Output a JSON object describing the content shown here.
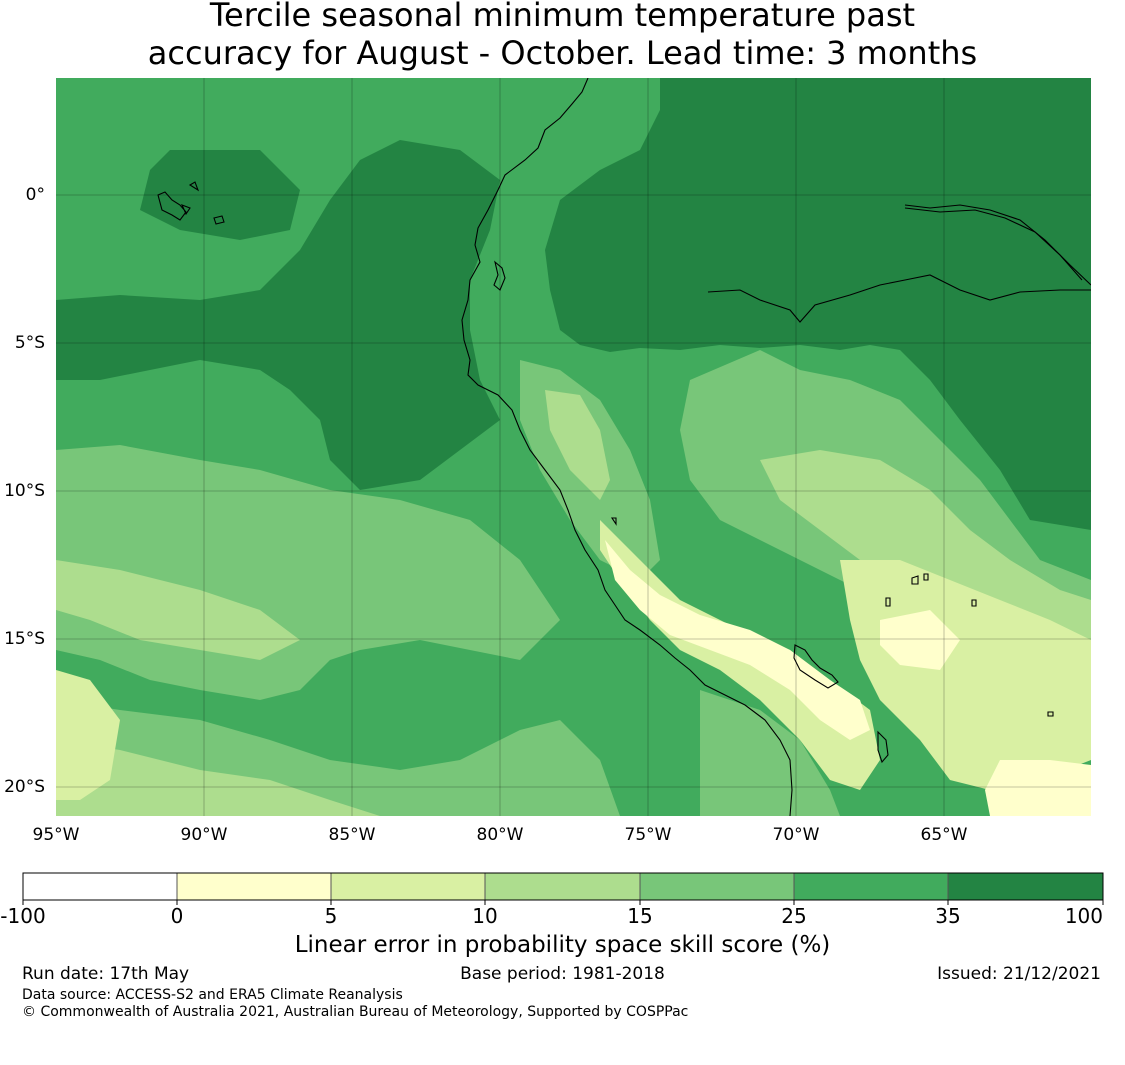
{
  "title": {
    "line1": "Tercile seasonal minimum temperature past",
    "line2": "accuracy for August - October. Lead time: 3 months"
  },
  "map": {
    "lon_ticks": [
      "95°W",
      "90°W",
      "85°W",
      "80°W",
      "75°W",
      "70°W",
      "65°W"
    ],
    "lat_ticks": [
      "0°",
      "5°S",
      "10°S",
      "15°S",
      "20°S"
    ],
    "extent": {
      "lon": [
        -95,
        -60
      ],
      "lat": [
        -21,
        4
      ]
    }
  },
  "colorbar": {
    "bounds": [
      "-100",
      "0",
      "5",
      "10",
      "15",
      "25",
      "35",
      "100"
    ],
    "colors": [
      "#ffffff",
      "#ffffcc",
      "#d9f0a3",
      "#addd8e",
      "#78c679",
      "#41ab5d",
      "#238443"
    ],
    "label": "Linear error in probability space skill score (%)"
  },
  "footer": {
    "run_date": "Run date: 17th May",
    "base_period": "Base period: 1981-2018",
    "issued": "Issued: 21/12/2021",
    "data_source": "Data source: ACCESS-S2 and ERA5 Climate Reanalysis",
    "copyright": "© Commonwealth of Australia 2021, Australian Bureau of Meteorology, Supported by COSPPac"
  }
}
